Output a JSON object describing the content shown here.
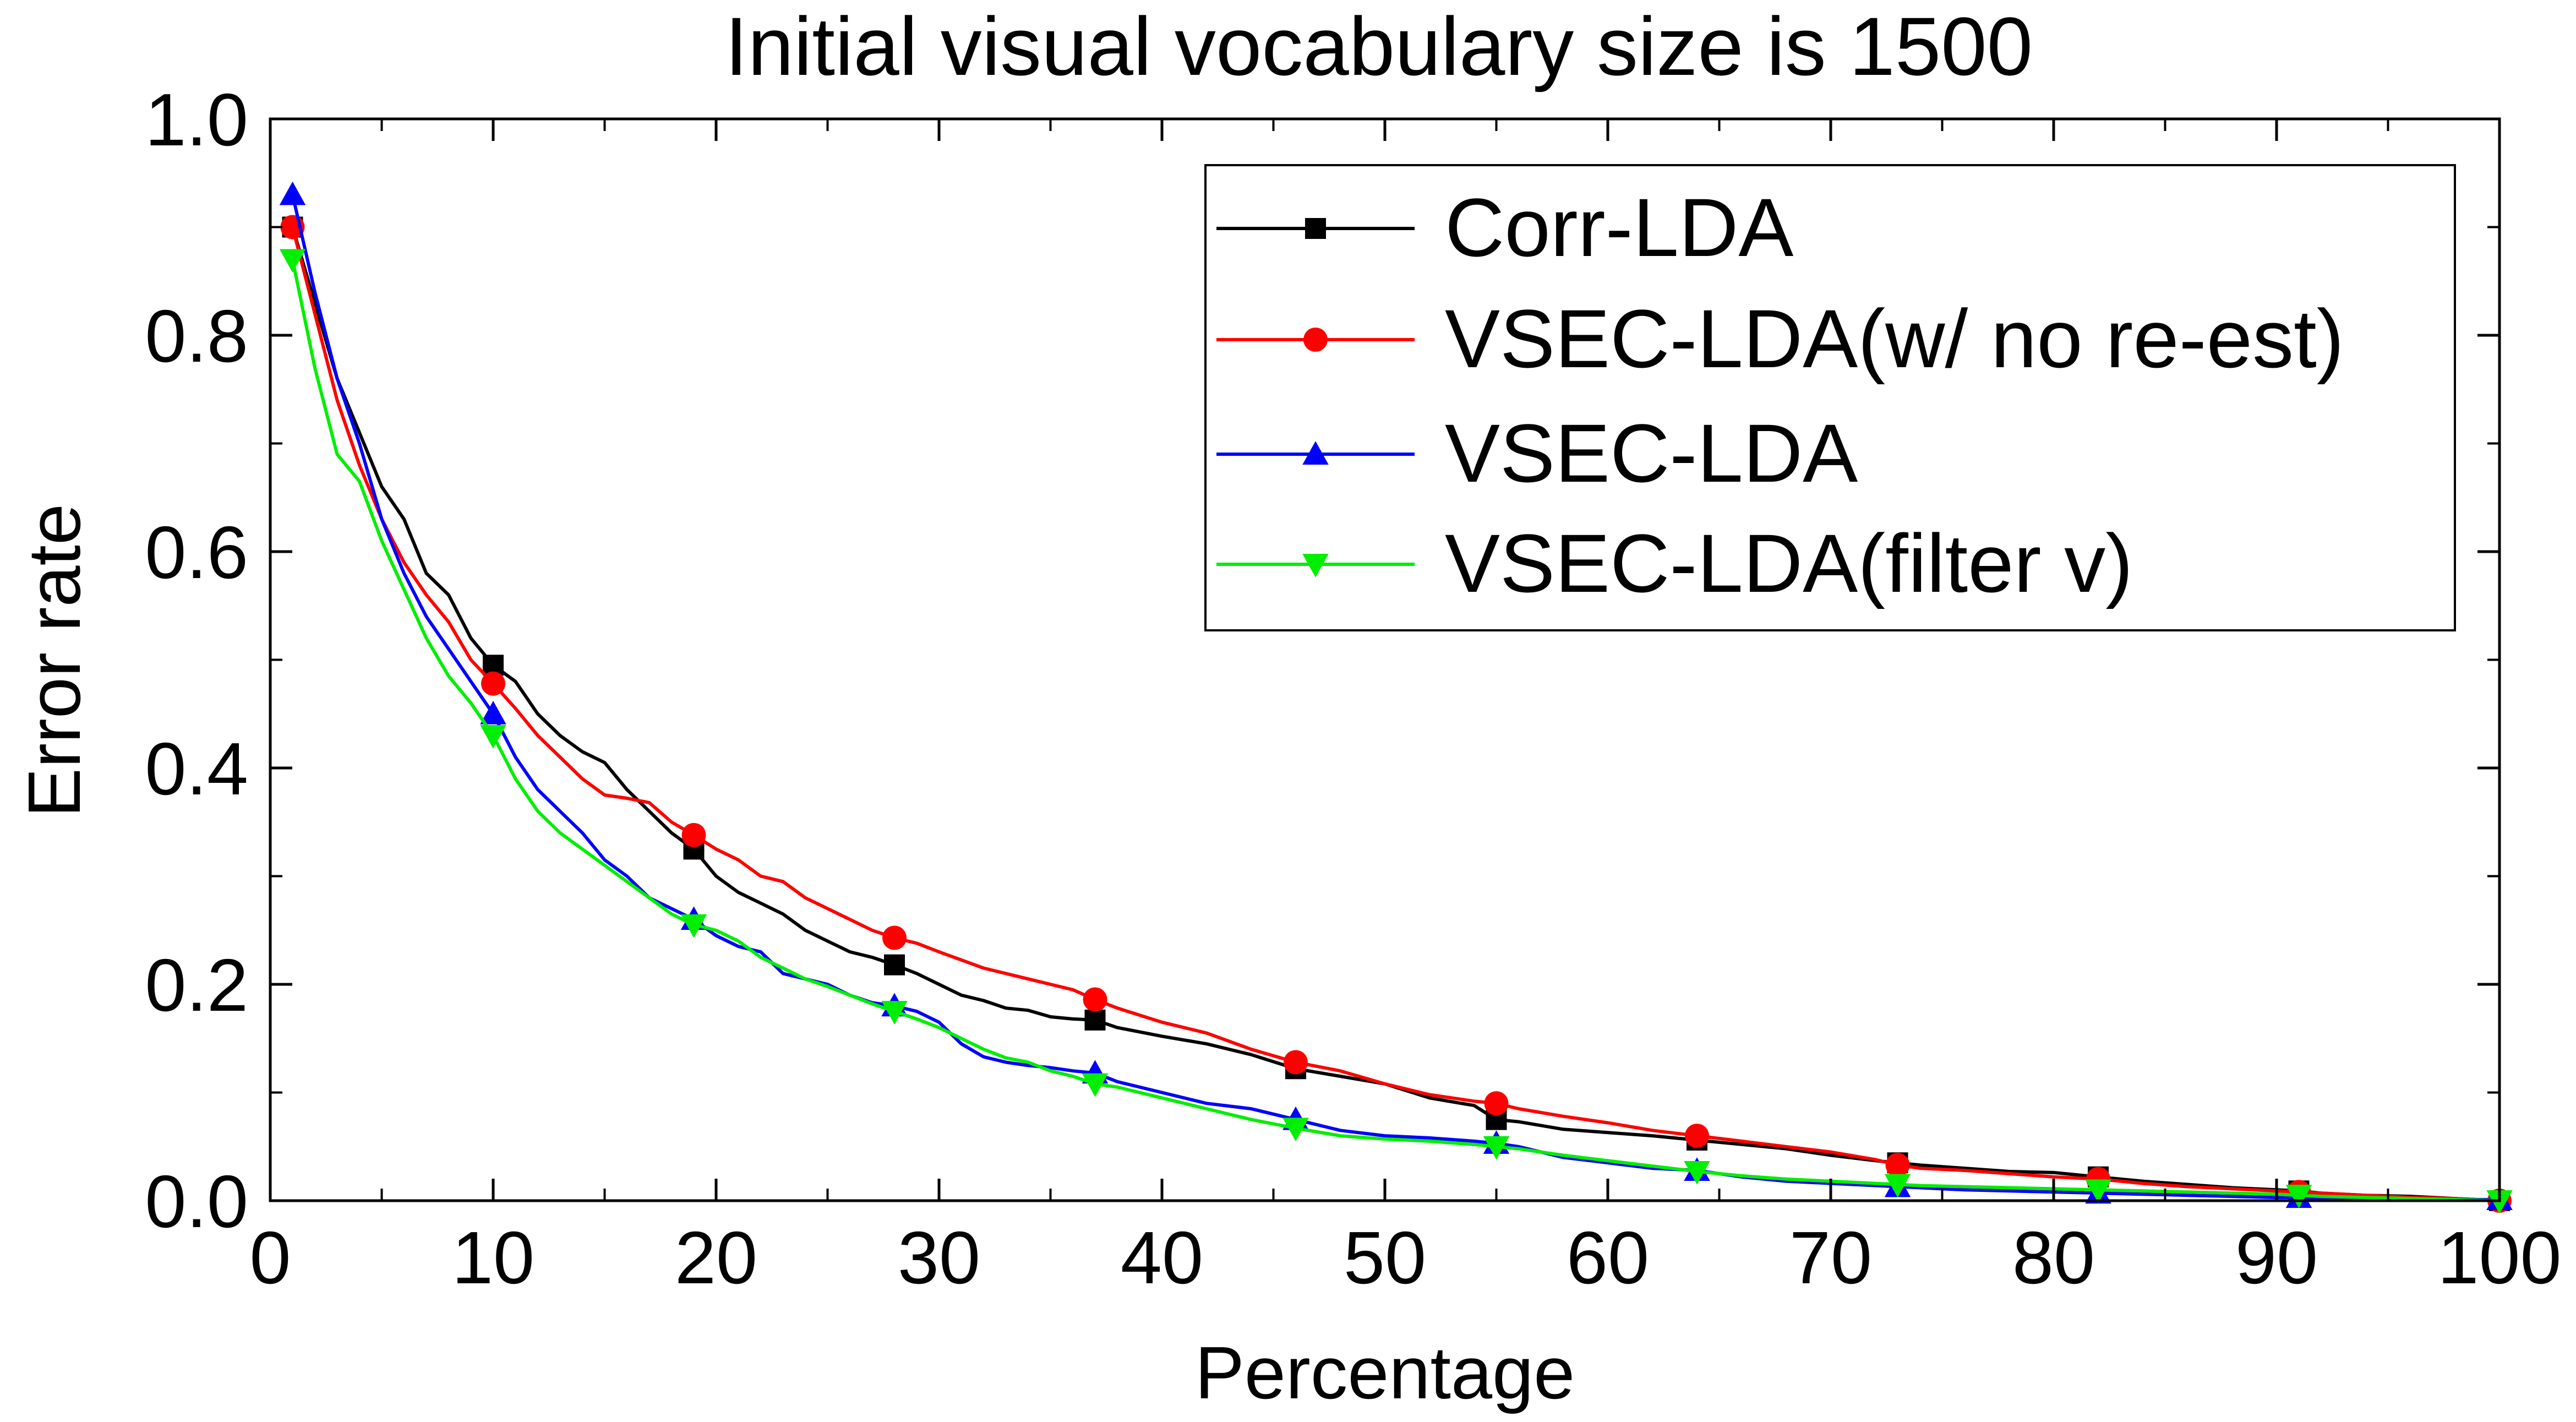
{
  "chart_data": {
    "type": "line",
    "title": "Initial visual vocabulary size is 1500",
    "xlabel": "Percentage",
    "ylabel": "Error rate",
    "xlim": [
      0,
      100
    ],
    "ylim": [
      0,
      1.0
    ],
    "xticks": [
      0,
      10,
      20,
      30,
      40,
      50,
      60,
      70,
      80,
      90,
      100
    ],
    "yticks": [
      0.0,
      0.2,
      0.4,
      0.6,
      0.8,
      1.0
    ],
    "xtick_labels": [
      "0",
      "10",
      "20",
      "30",
      "40",
      "50",
      "60",
      "70",
      "80",
      "90",
      "100"
    ],
    "ytick_labels": [
      "0.0",
      "0.2",
      "0.4",
      "0.6",
      "0.8",
      "1.0"
    ],
    "grid": false,
    "legend_position": "top-right",
    "series": [
      {
        "name": "Corr-LDA",
        "color": "#000000",
        "marker": "square",
        "x": [
          1,
          2,
          3,
          4,
          5,
          6,
          7,
          8,
          9,
          10,
          11,
          12,
          13,
          14,
          15,
          16,
          17,
          18,
          19,
          20,
          21,
          22,
          23,
          24,
          25,
          26,
          27,
          28,
          29,
          30,
          31,
          32,
          33,
          34,
          35,
          36,
          37,
          38,
          40,
          42,
          44,
          46,
          48,
          50,
          52,
          54,
          55,
          56,
          58,
          60,
          62,
          64,
          66,
          68,
          70,
          72,
          73,
          74,
          76,
          78,
          80,
          82,
          84,
          86,
          88,
          90,
          91,
          92,
          94,
          96,
          98,
          100
        ],
        "y": [
          0.9,
          0.83,
          0.76,
          0.71,
          0.66,
          0.63,
          0.58,
          0.56,
          0.52,
          0.495,
          0.48,
          0.45,
          0.43,
          0.415,
          0.405,
          0.38,
          0.36,
          0.34,
          0.325,
          0.3,
          0.285,
          0.275,
          0.265,
          0.25,
          0.24,
          0.23,
          0.225,
          0.218,
          0.21,
          0.2,
          0.19,
          0.185,
          0.178,
          0.176,
          0.17,
          0.168,
          0.167,
          0.16,
          0.152,
          0.145,
          0.135,
          0.122,
          0.115,
          0.108,
          0.095,
          0.088,
          0.075,
          0.073,
          0.066,
          0.063,
          0.06,
          0.056,
          0.052,
          0.048,
          0.042,
          0.037,
          0.035,
          0.033,
          0.03,
          0.027,
          0.026,
          0.022,
          0.018,
          0.015,
          0.012,
          0.01,
          0.009,
          0.007,
          0.005,
          0.004,
          0.002,
          0.0
        ],
        "marker_x": [
          1,
          10,
          19,
          28,
          37,
          46,
          55,
          64,
          73,
          82,
          91,
          100
        ],
        "marker_y": [
          0.9,
          0.495,
          0.325,
          0.218,
          0.167,
          0.122,
          0.075,
          0.056,
          0.035,
          0.022,
          0.009,
          0.0
        ]
      },
      {
        "name": "VSEC-LDA(w/ no re-est)",
        "color": "#ff0000",
        "marker": "circle",
        "x": [
          1,
          2,
          3,
          4,
          5,
          6,
          7,
          8,
          9,
          10,
          11,
          12,
          13,
          14,
          15,
          16,
          17,
          18,
          19,
          20,
          21,
          22,
          23,
          24,
          25,
          26,
          27,
          28,
          29,
          30,
          32,
          34,
          36,
          37,
          38,
          40,
          42,
          44,
          46,
          48,
          50,
          52,
          54,
          55,
          56,
          58,
          60,
          62,
          64,
          66,
          68,
          70,
          72,
          73,
          74,
          76,
          78,
          80,
          82,
          84,
          86,
          88,
          90,
          91,
          92,
          94,
          96,
          98,
          100
        ],
        "y": [
          0.9,
          0.82,
          0.74,
          0.68,
          0.63,
          0.59,
          0.56,
          0.535,
          0.5,
          0.478,
          0.455,
          0.43,
          0.41,
          0.39,
          0.375,
          0.372,
          0.368,
          0.35,
          0.338,
          0.325,
          0.315,
          0.3,
          0.295,
          0.28,
          0.27,
          0.26,
          0.25,
          0.243,
          0.238,
          0.23,
          0.215,
          0.205,
          0.195,
          0.186,
          0.178,
          0.165,
          0.155,
          0.14,
          0.128,
          0.12,
          0.108,
          0.098,
          0.092,
          0.09,
          0.085,
          0.078,
          0.072,
          0.065,
          0.06,
          0.055,
          0.05,
          0.045,
          0.038,
          0.033,
          0.03,
          0.028,
          0.025,
          0.022,
          0.02,
          0.016,
          0.013,
          0.011,
          0.009,
          0.008,
          0.007,
          0.005,
          0.003,
          0.002,
          0.0
        ],
        "marker_x": [
          1,
          10,
          19,
          28,
          37,
          46,
          55,
          64,
          73,
          82,
          91,
          100
        ],
        "marker_y": [
          0.9,
          0.478,
          0.338,
          0.243,
          0.186,
          0.128,
          0.09,
          0.06,
          0.033,
          0.02,
          0.008,
          0.0
        ]
      },
      {
        "name": "VSEC-LDA",
        "color": "#0000ff",
        "marker": "triangle-up",
        "x": [
          1,
          2,
          3,
          4,
          5,
          6,
          7,
          8,
          9,
          10,
          11,
          12,
          13,
          14,
          15,
          16,
          17,
          18,
          19,
          20,
          21,
          22,
          23,
          24,
          25,
          26,
          27,
          28,
          29,
          30,
          31,
          32,
          33,
          34,
          35,
          36,
          37,
          38,
          40,
          42,
          44,
          46,
          48,
          50,
          52,
          54,
          55,
          56,
          58,
          60,
          62,
          64,
          66,
          68,
          70,
          72,
          73,
          74,
          76,
          78,
          80,
          82,
          84,
          86,
          88,
          90,
          91,
          92,
          94,
          96,
          98,
          100
        ],
        "y": [
          0.93,
          0.84,
          0.76,
          0.7,
          0.63,
          0.58,
          0.54,
          0.51,
          0.48,
          0.45,
          0.41,
          0.38,
          0.36,
          0.34,
          0.315,
          0.3,
          0.28,
          0.27,
          0.26,
          0.245,
          0.235,
          0.23,
          0.21,
          0.205,
          0.2,
          0.19,
          0.183,
          0.18,
          0.175,
          0.165,
          0.145,
          0.133,
          0.128,
          0.125,
          0.123,
          0.12,
          0.118,
          0.11,
          0.1,
          0.09,
          0.085,
          0.075,
          0.065,
          0.06,
          0.058,
          0.055,
          0.053,
          0.05,
          0.04,
          0.035,
          0.03,
          0.028,
          0.022,
          0.018,
          0.016,
          0.014,
          0.013,
          0.012,
          0.01,
          0.009,
          0.008,
          0.007,
          0.006,
          0.005,
          0.004,
          0.003,
          0.003,
          0.002,
          0.002,
          0.001,
          0.001,
          0.001
        ],
        "marker_x": [
          1,
          10,
          19,
          28,
          37,
          46,
          55,
          64,
          73,
          82,
          91,
          100
        ],
        "marker_y": [
          0.93,
          0.45,
          0.26,
          0.18,
          0.118,
          0.075,
          0.053,
          0.028,
          0.013,
          0.007,
          0.003,
          0.001
        ]
      },
      {
        "name": "VSEC-LDA(filter v)",
        "color": "#00ee00",
        "marker": "triangle-down",
        "x": [
          1,
          2,
          3,
          4,
          5,
          6,
          7,
          8,
          9,
          10,
          11,
          12,
          13,
          14,
          15,
          16,
          17,
          18,
          19,
          20,
          21,
          22,
          23,
          24,
          25,
          26,
          27,
          28,
          29,
          30,
          31,
          32,
          33,
          34,
          35,
          36,
          37,
          38,
          40,
          42,
          44,
          46,
          48,
          50,
          52,
          54,
          55,
          56,
          58,
          60,
          62,
          64,
          66,
          68,
          70,
          72,
          73,
          74,
          76,
          78,
          80,
          82,
          84,
          86,
          88,
          90,
          91,
          92,
          94,
          96,
          98,
          100
        ],
        "y": [
          0.87,
          0.77,
          0.69,
          0.665,
          0.61,
          0.565,
          0.52,
          0.485,
          0.46,
          0.43,
          0.39,
          0.36,
          0.34,
          0.325,
          0.31,
          0.295,
          0.28,
          0.265,
          0.255,
          0.25,
          0.24,
          0.225,
          0.215,
          0.205,
          0.198,
          0.19,
          0.182,
          0.175,
          0.168,
          0.16,
          0.15,
          0.14,
          0.132,
          0.128,
          0.12,
          0.115,
          0.108,
          0.105,
          0.095,
          0.085,
          0.075,
          0.067,
          0.06,
          0.057,
          0.055,
          0.052,
          0.05,
          0.048,
          0.042,
          0.037,
          0.032,
          0.027,
          0.023,
          0.02,
          0.018,
          0.016,
          0.015,
          0.014,
          0.013,
          0.012,
          0.011,
          0.01,
          0.009,
          0.008,
          0.007,
          0.006,
          0.005,
          0.004,
          0.003,
          0.002,
          0.001,
          0.0
        ],
        "marker_x": [
          1,
          10,
          19,
          28,
          37,
          46,
          55,
          64,
          73,
          82,
          91,
          100
        ],
        "marker_y": [
          0.87,
          0.43,
          0.255,
          0.175,
          0.108,
          0.067,
          0.05,
          0.027,
          0.015,
          0.01,
          0.005,
          0.0
        ]
      }
    ]
  }
}
